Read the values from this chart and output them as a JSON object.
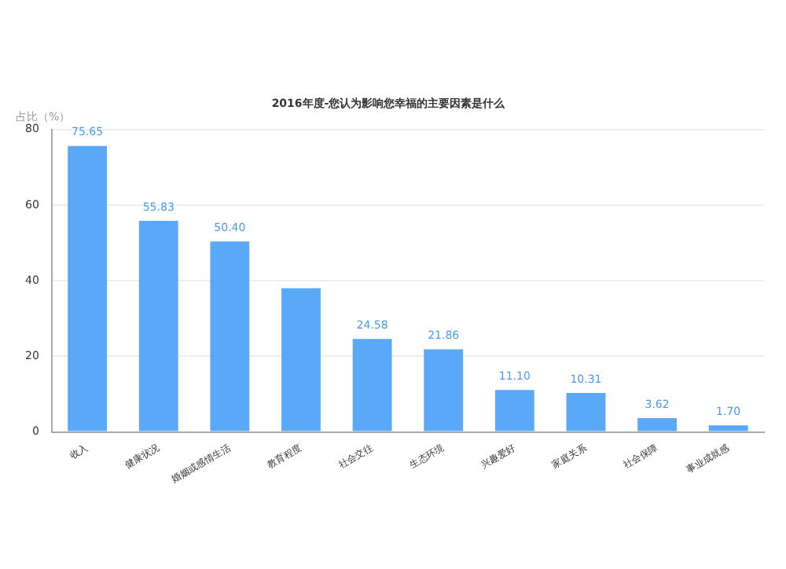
{
  "chart_data": {
    "type": "bar",
    "title": "2016年度-您认为影响您幸福的主要因素是什么",
    "ylabel": "占比（%）",
    "categories": [
      "收入",
      "健康状况",
      "婚姻或感情生活",
      "教育程度",
      "社会交往",
      "生态环境",
      "兴趣爱好",
      "家庭关系",
      "社会保障",
      "事业成就感"
    ],
    "values": [
      75.65,
      55.83,
      50.4,
      38,
      24.58,
      21.86,
      11.1,
      10.31,
      3.62,
      1.7
    ],
    "value_labels": [
      "75.65",
      "55.83",
      "50.40",
      null,
      "24.58",
      "21.86",
      "11.10",
      "10.31",
      "3.62",
      "1.70"
    ],
    "color": "#5aa9f8",
    "ylim": [
      0,
      80
    ],
    "yticks": [
      0,
      20,
      40,
      60,
      80
    ],
    "grid": "y"
  }
}
